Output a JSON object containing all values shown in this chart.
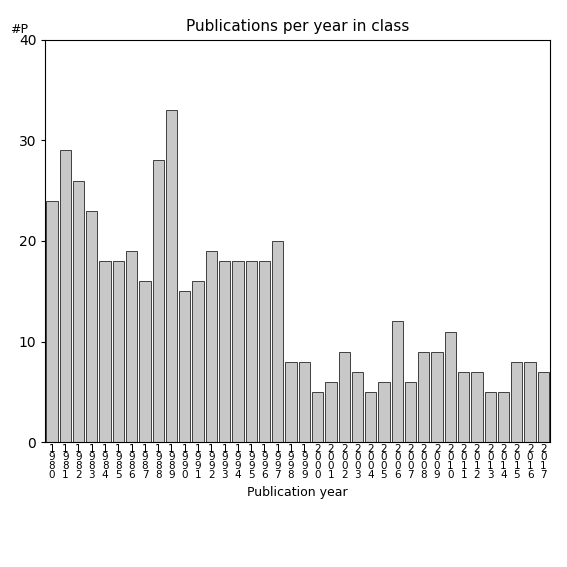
{
  "title": "Publications per year in class",
  "xlabel": "Publication year",
  "ylabel": "#P",
  "categories": [
    "1\n9\n8\n0",
    "1\n9\n8\n1",
    "1\n9\n8\n2",
    "1\n9\n8\n3",
    "1\n9\n8\n4",
    "1\n9\n8\n5",
    "1\n9\n8\n6",
    "1\n9\n8\n7",
    "1\n9\n8\n8",
    "1\n9\n8\n9",
    "1\n9\n9\n0",
    "1\n9\n9\n1",
    "1\n9\n9\n2",
    "1\n9\n9\n3",
    "1\n9\n9\n4",
    "1\n9\n9\n5",
    "1\n9\n9\n6",
    "1\n9\n9\n7",
    "1\n9\n9\n8",
    "1\n9\n9\n9",
    "2\n0\n0\n0",
    "2\n0\n0\n1",
    "2\n0\n0\n2",
    "2\n0\n0\n3",
    "2\n0\n0\n4",
    "2\n0\n0\n5",
    "2\n0\n0\n6",
    "2\n0\n0\n7",
    "2\n0\n0\n8",
    "2\n0\n0\n9",
    "2\n0\n1\n0",
    "2\n0\n1\n1",
    "2\n0\n1\n2",
    "2\n0\n1\n3",
    "2\n0\n1\n4",
    "2\n0\n1\n5",
    "2\n0\n1\n6",
    "2\n0\n1\n7"
  ],
  "values": [
    24,
    29,
    26,
    23,
    18,
    18,
    19,
    16,
    28,
    33,
    15,
    16,
    19,
    18,
    18,
    18,
    18,
    20,
    8,
    8,
    5,
    6,
    9,
    7,
    5,
    6,
    12,
    6,
    9,
    9,
    11,
    7,
    7,
    5,
    5,
    8,
    8,
    7
  ],
  "bar_color": "#c8c8c8",
  "bar_edge_color": "#000000",
  "ylim": [
    0,
    40
  ],
  "yticks": [
    0,
    10,
    20,
    30,
    40
  ],
  "background_color": "#ffffff",
  "title_fontsize": 11,
  "axis_fontsize": 9,
  "tick_fontsize": 7.5
}
